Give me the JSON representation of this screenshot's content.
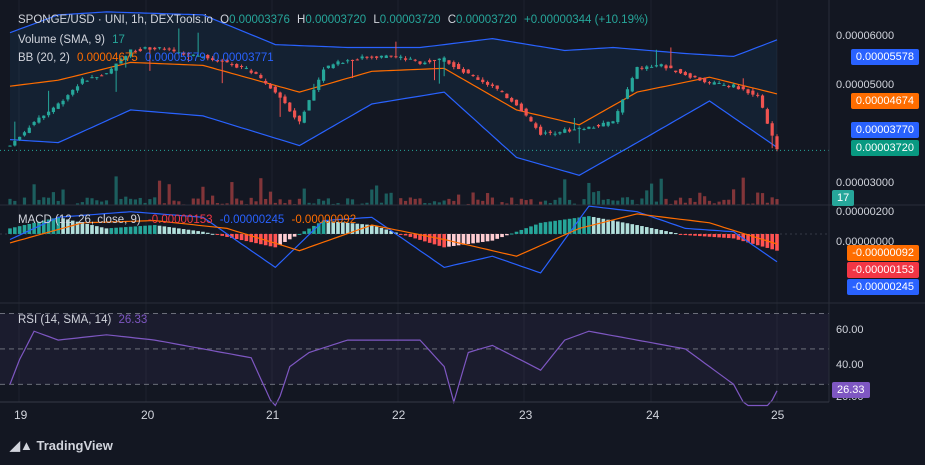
{
  "legend": {
    "symbol": "SPONGE/USD · UNI, 1h, DEXTools.io",
    "o_label": "O",
    "o_value": "0.00003376",
    "h_label": "H",
    "h_value": "0.00003720",
    "l_label": "L",
    "l_value": "0.00003720",
    "c_label": "C",
    "c_value": "0.00003720",
    "change": "+0.00000344 (+10.19%)",
    "volume_label": "Volume (SMA, 9)",
    "volume_value": "17",
    "bb_label": "BB (20, 2)",
    "bb_basis": "0.00004675",
    "bb_upper": "0.00005579",
    "bb_lower": "0.00003771",
    "macd_label": "MACD (12, 26, close, 9)",
    "macd_hist": "-0.00000153",
    "macd_line": "-0.00000245",
    "macd_signal": "-0.00000092",
    "rsi_label": "RSI (14, SMA, 14)",
    "rsi_value": "26.33"
  },
  "price_axis": [
    "0.00006000",
    "0.00005000",
    "0.00003000"
  ],
  "price_tags": [
    {
      "value": "0.00005578",
      "color": "#2962ff"
    },
    {
      "value": "0.00004674",
      "color": "#ff6d00"
    },
    {
      "value": "0.00003770",
      "color": "#2962ff"
    },
    {
      "value": "0.00003720",
      "color": "#089981"
    }
  ],
  "volume_tag": {
    "value": "17",
    "color": "#26a69a"
  },
  "macd_axis": [
    "0.00000200",
    "0.00000000"
  ],
  "macd_tags": [
    {
      "value": "-0.00000092",
      "color": "#ff6d00"
    },
    {
      "value": "-0.00000153",
      "color": "#f23645"
    },
    {
      "value": "-0.00000245",
      "color": "#2962ff"
    }
  ],
  "rsi_axis": [
    "60.00",
    "40.00",
    "20.00"
  ],
  "rsi_tag": {
    "value": "26.33",
    "color": "#7e57c2"
  },
  "x_labels": [
    "19",
    "20",
    "21",
    "22",
    "23",
    "24",
    "25"
  ],
  "footer": "TradingView",
  "chart_data": {
    "type": "candlestick",
    "timeframe": "1h",
    "x_ticks": [
      "19",
      "20",
      "21",
      "22",
      "23",
      "24",
      "25"
    ],
    "price": {
      "ylim": [
        2.8e-05,
        6.25e-05
      ],
      "close_points": [
        [
          0,
          3.8e-05
        ],
        [
          5,
          4.2e-05
        ],
        [
          10,
          4.5e-05
        ],
        [
          15,
          4.9e-05
        ],
        [
          20,
          5e-05
        ],
        [
          25,
          5.4e-05
        ],
        [
          30,
          5.45e-05
        ],
        [
          35,
          5.35e-05
        ],
        [
          40,
          5.3e-05
        ],
        [
          45,
          5.2e-05
        ],
        [
          50,
          5.05e-05
        ],
        [
          55,
          4.7e-05
        ],
        [
          60,
          4.2e-05
        ],
        [
          65,
          5.1e-05
        ],
        [
          70,
          5.25e-05
        ],
        [
          75,
          5.3e-05
        ],
        [
          80,
          5.3e-05
        ],
        [
          85,
          5.2e-05
        ],
        [
          90,
          5.25e-05
        ],
        [
          95,
          5e-05
        ],
        [
          100,
          4.8e-05
        ],
        [
          105,
          4.5e-05
        ],
        [
          110,
          4e-05
        ],
        [
          115,
          4.05e-05
        ],
        [
          120,
          4.1e-05
        ],
        [
          125,
          4.2e-05
        ],
        [
          130,
          5.1e-05
        ],
        [
          135,
          5.15e-05
        ],
        [
          140,
          5e-05
        ],
        [
          145,
          4.85e-05
        ],
        [
          150,
          4.8e-05
        ],
        [
          155,
          4.65e-05
        ],
        [
          159,
          3.72e-05
        ]
      ],
      "bb_upper_points": [
        [
          0,
          5.7e-05
        ],
        [
          10,
          6e-05
        ],
        [
          20,
          6.05e-05
        ],
        [
          40,
          6e-05
        ],
        [
          55,
          5.5e-05
        ],
        [
          70,
          5.45e-05
        ],
        [
          85,
          5.45e-05
        ],
        [
          100,
          5.6e-05
        ],
        [
          115,
          5.4e-05
        ],
        [
          125,
          5.45e-05
        ],
        [
          140,
          5.35e-05
        ],
        [
          150,
          5.3e-05
        ],
        [
          159,
          5.58e-05
        ]
      ],
      "bb_basis_points": [
        [
          0,
          4.8e-05
        ],
        [
          10,
          4.9e-05
        ],
        [
          25,
          5.2e-05
        ],
        [
          40,
          5.15e-05
        ],
        [
          60,
          4.7e-05
        ],
        [
          75,
          5.05e-05
        ],
        [
          90,
          5.1e-05
        ],
        [
          105,
          4.4e-05
        ],
        [
          118,
          4.15e-05
        ],
        [
          130,
          4.7e-05
        ],
        [
          145,
          4.95e-05
        ],
        [
          159,
          4.67e-05
        ]
      ],
      "bb_lower_points": [
        [
          0,
          3.9e-05
        ],
        [
          10,
          3.85e-05
        ],
        [
          25,
          4.4e-05
        ],
        [
          40,
          4.3e-05
        ],
        [
          60,
          3.8e-05
        ],
        [
          75,
          4.5e-05
        ],
        [
          90,
          4.7e-05
        ],
        [
          105,
          3.6e-05
        ],
        [
          118,
          3.3e-05
        ],
        [
          130,
          3.85e-05
        ],
        [
          145,
          4.55e-05
        ],
        [
          159,
          3.77e-05
        ]
      ],
      "last_close": 3.72e-05
    },
    "volume": {
      "last": 17
    },
    "macd": {
      "ylim": [
        -6.2e-06,
        2.6e-06
      ],
      "hist_points": [
        [
          0,
          5e-07
        ],
        [
          10,
          1.5e-06
        ],
        [
          20,
          5e-07
        ],
        [
          30,
          8e-07
        ],
        [
          40,
          2e-07
        ],
        [
          55,
          -1.2e-06
        ],
        [
          65,
          1.2e-06
        ],
        [
          75,
          8e-07
        ],
        [
          90,
          -1.2e-06
        ],
        [
          100,
          -6e-07
        ],
        [
          110,
          1e-06
        ],
        [
          120,
          1.6e-06
        ],
        [
          130,
          8e-07
        ],
        [
          140,
          -1e-07
        ],
        [
          150,
          -4e-07
        ],
        [
          159,
          -1.5e-06
        ]
      ],
      "macd_points": [
        [
          0,
          -5e-07
        ],
        [
          10,
          1.5e-06
        ],
        [
          25,
          2e-06
        ],
        [
          40,
          1.5e-06
        ],
        [
          55,
          -3e-06
        ],
        [
          65,
          1.2e-06
        ],
        [
          75,
          1.5e-06
        ],
        [
          90,
          -3e-06
        ],
        [
          100,
          -2e-06
        ],
        [
          110,
          -3.5e-06
        ],
        [
          120,
          2.5e-06
        ],
        [
          130,
          2e-06
        ],
        [
          140,
          5e-07
        ],
        [
          150,
          2e-07
        ],
        [
          159,
          -2.5e-06
        ]
      ],
      "signal_points": [
        [
          0,
          -8e-07
        ],
        [
          15,
          1e-06
        ],
        [
          30,
          1.2e-06
        ],
        [
          45,
          5e-07
        ],
        [
          60,
          -1.5e-06
        ],
        [
          75,
          8e-07
        ],
        [
          90,
          -5e-07
        ],
        [
          105,
          -2e-06
        ],
        [
          118,
          5e-07
        ],
        [
          130,
          1.8e-06
        ],
        [
          145,
          1e-06
        ],
        [
          159,
          -9e-07
        ]
      ],
      "last_hist": -1.53e-06,
      "last_macd": -2.45e-06,
      "last_signal": -9.2e-07
    },
    "rsi": {
      "ylim": [
        20,
        72
      ],
      "upper_band": 70,
      "middle": 50,
      "lower_band": 30,
      "points": [
        [
          0,
          30
        ],
        [
          2,
          44
        ],
        [
          5,
          60
        ],
        [
          10,
          55
        ],
        [
          20,
          58
        ],
        [
          30,
          55
        ],
        [
          40,
          50
        ],
        [
          50,
          45
        ],
        [
          55,
          15
        ],
        [
          58,
          40
        ],
        [
          62,
          48
        ],
        [
          70,
          55
        ],
        [
          75,
          55
        ],
        [
          85,
          55
        ],
        [
          90,
          40
        ],
        [
          92,
          20
        ],
        [
          95,
          48
        ],
        [
          100,
          52
        ],
        [
          110,
          38
        ],
        [
          115,
          55
        ],
        [
          120,
          60
        ],
        [
          130,
          55
        ],
        [
          140,
          50
        ],
        [
          150,
          30
        ],
        [
          155,
          5
        ],
        [
          159,
          26.33
        ]
      ],
      "sma_points": [
        [
          0,
          45
        ],
        [
          20,
          55
        ],
        [
          40,
          50
        ],
        [
          60,
          45
        ],
        [
          80,
          52
        ],
        [
          100,
          48
        ],
        [
          120,
          55
        ],
        [
          140,
          50
        ],
        [
          159,
          38
        ]
      ],
      "last": 26.33
    }
  }
}
